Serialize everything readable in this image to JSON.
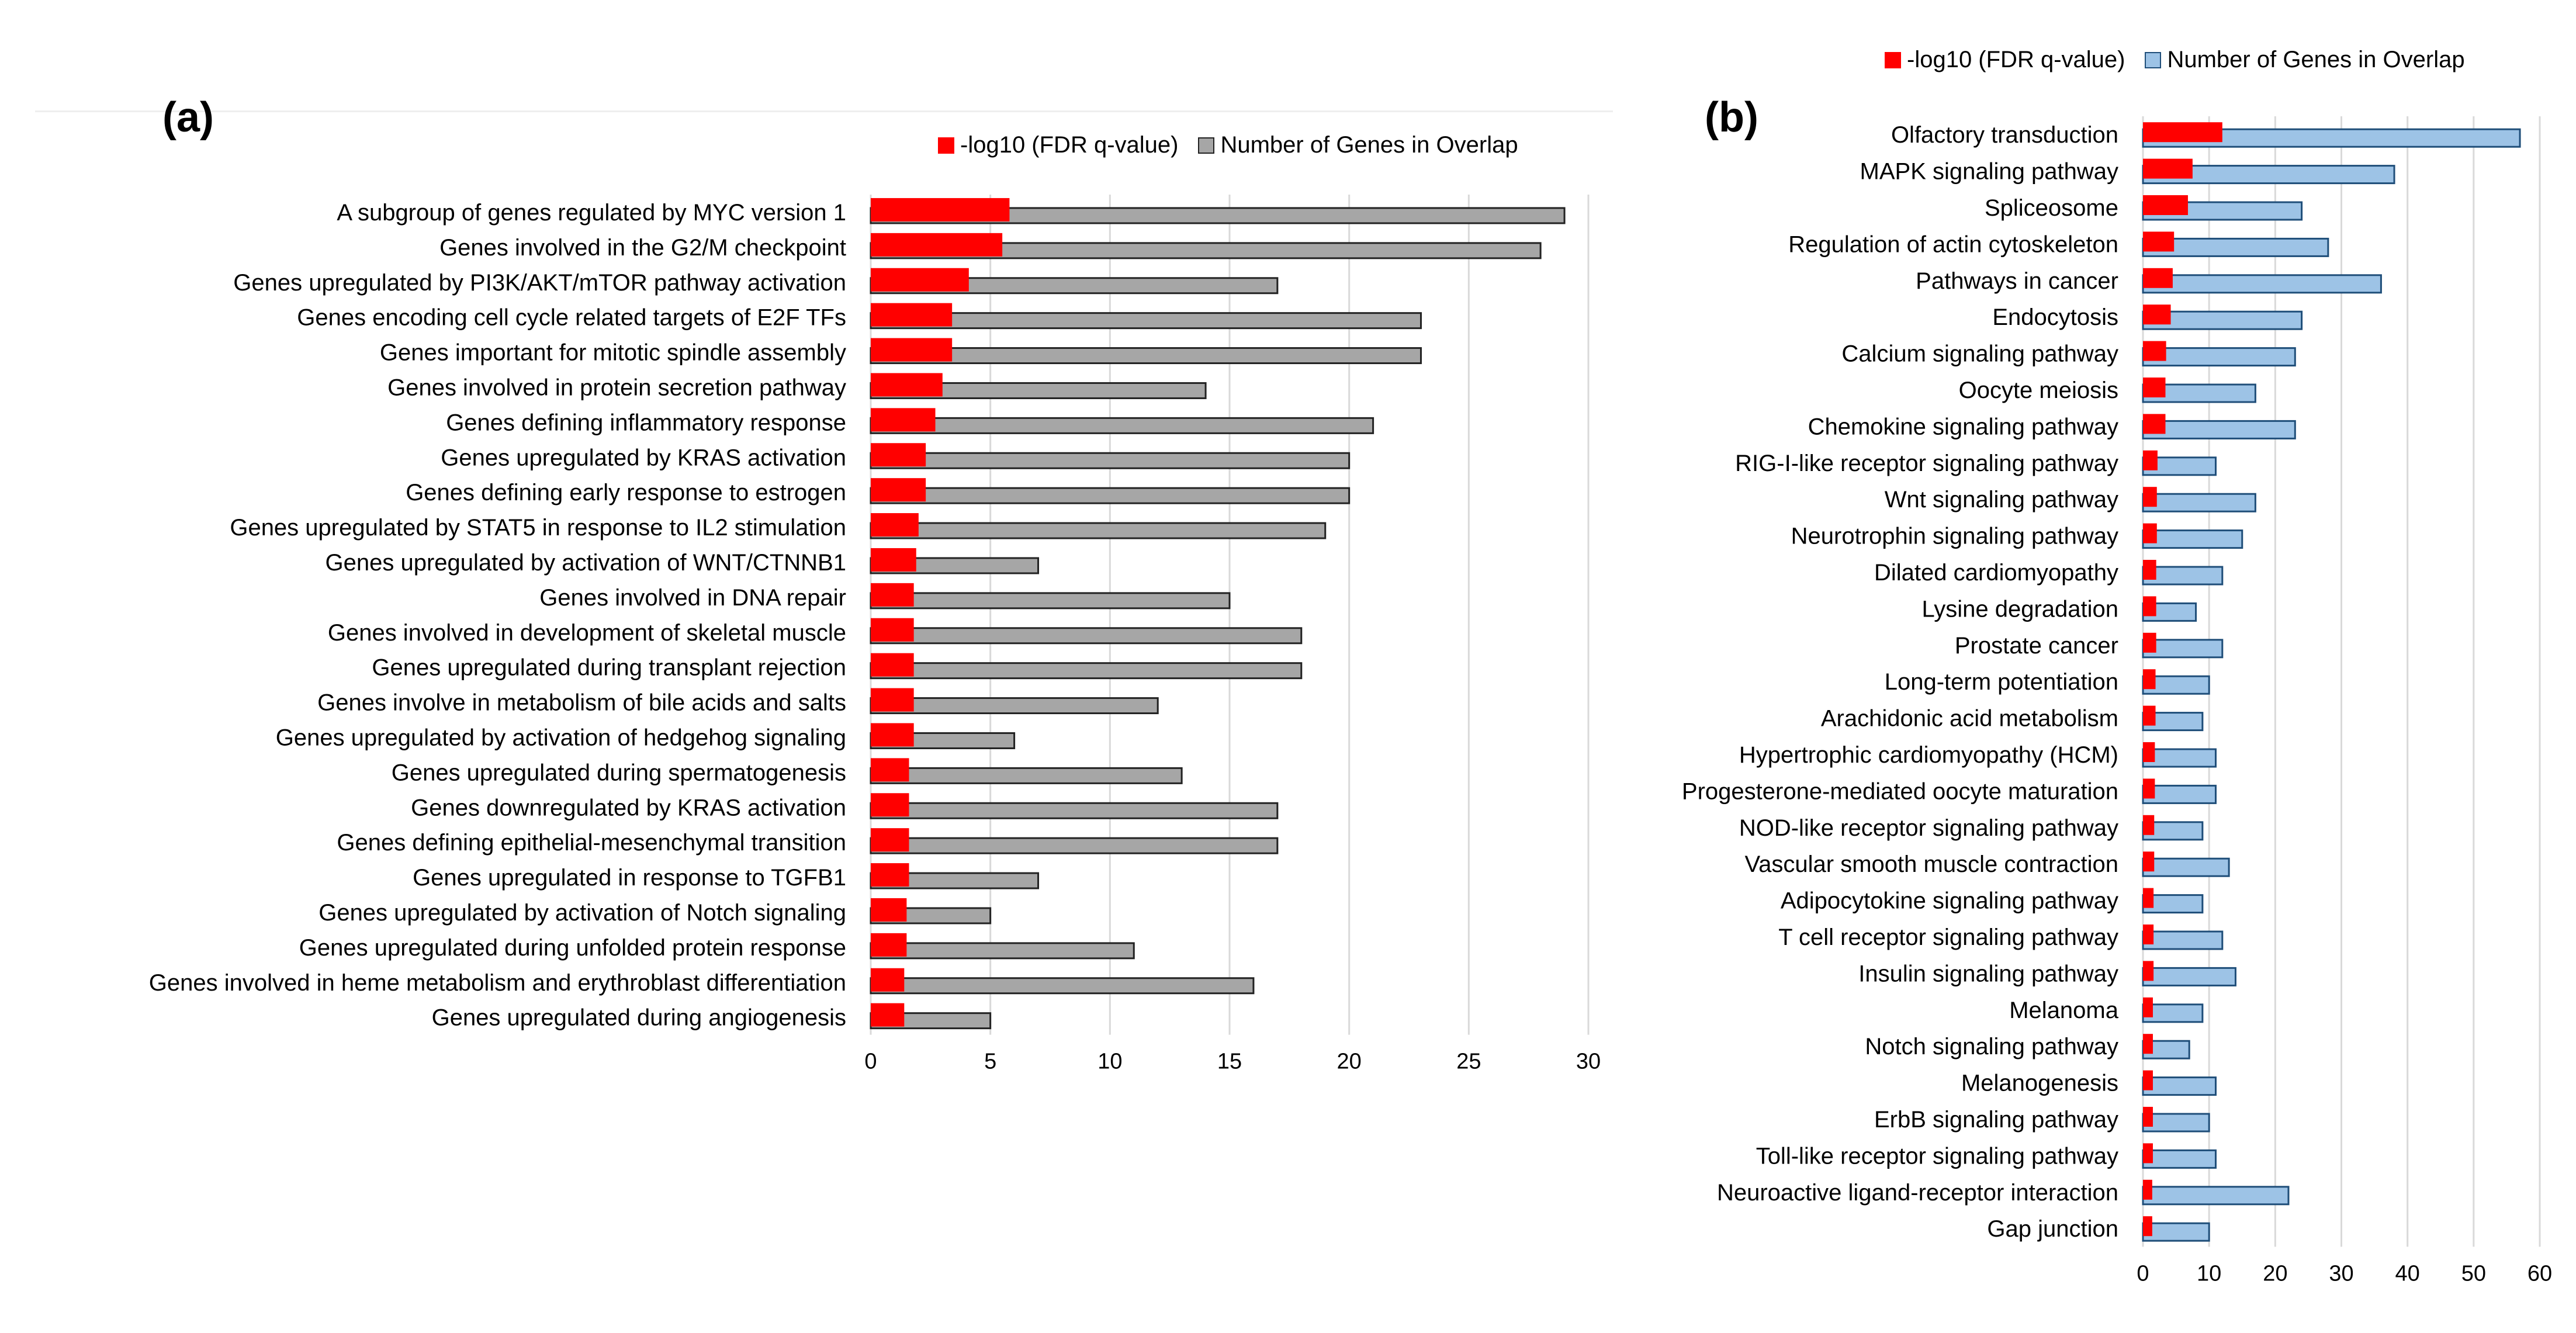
{
  "panels": {
    "a": {
      "label": "(a)"
    },
    "b": {
      "label": "(b)"
    }
  },
  "chart_data": [
    {
      "type": "bar",
      "orientation": "horizontal",
      "panel": "a",
      "title": "",
      "xlabel": "",
      "ylabel": "",
      "xlim": [
        0,
        30
      ],
      "xticks": [
        "0",
        "5",
        "10",
        "15",
        "20",
        "25",
        "30"
      ],
      "grid": true,
      "legend_position": "top",
      "categories": [
        "A subgroup of genes regulated by MYC version 1",
        "Genes involved in the G2/M checkpoint",
        "Genes upregulated by PI3K/AKT/mTOR pathway activation",
        "Genes encoding cell cycle related targets of E2F TFs",
        "Genes important for mitotic spindle assembly",
        "Genes involved in protein secretion pathway",
        "Genes defining inflammatory response",
        "Genes upregulated by KRAS activation",
        "Genes defining early response to estrogen",
        "Genes upregulated by STAT5 in response to IL2 stimulation",
        "Genes upregulated by activation of WNT/CTNNB1",
        "Genes involved in DNA repair",
        "Genes involved in development of skeletal muscle",
        "Genes upregulated during transplant rejection",
        "Genes involve in metabolism of bile acids and salts",
        "Genes upregulated by activation of hedgehog signaling",
        "Genes upregulated during spermatogenesis",
        "Genes downregulated by KRAS activation",
        "Genes defining epithelial-mesenchymal transition",
        "Genes upregulated in response to TGFB1",
        "Genes upregulated by activation of Notch signaling",
        "Genes upregulated during unfolded protein response",
        "Genes involved in heme metabolism and erythroblast differentiation",
        "Genes upregulated during angiogenesis"
      ],
      "series": [
        {
          "name": "-log10 (FDR q-value)",
          "color": "#ff0000",
          "values": [
            5.8,
            5.5,
            4.1,
            3.4,
            3.4,
            3.0,
            2.7,
            2.3,
            2.3,
            2.0,
            1.9,
            1.8,
            1.8,
            1.8,
            1.8,
            1.8,
            1.6,
            1.6,
            1.6,
            1.6,
            1.5,
            1.5,
            1.4,
            1.4
          ]
        },
        {
          "name": "Number of Genes in Overlap",
          "color": "#a6a6a6",
          "values": [
            29,
            28,
            17,
            23,
            23,
            14,
            21,
            20,
            20,
            19,
            7,
            15,
            18,
            18,
            12,
            6,
            13,
            17,
            17,
            7,
            5,
            11,
            16,
            5
          ]
        }
      ]
    },
    {
      "type": "bar",
      "orientation": "horizontal",
      "panel": "b",
      "title": "",
      "xlabel": "",
      "ylabel": "",
      "xlim": [
        0,
        60
      ],
      "xticks": [
        "0",
        "10",
        "20",
        "30",
        "40",
        "50",
        "60"
      ],
      "grid": true,
      "legend_position": "top",
      "categories": [
        "Olfactory transduction",
        "MAPK signaling pathway",
        "Spliceosome",
        "Regulation of actin cytoskeleton",
        "Pathways in cancer",
        "Endocytosis",
        "Calcium signaling pathway",
        "Oocyte meiosis",
        "Chemokine signaling pathway",
        "RIG-I-like receptor signaling pathway",
        "Wnt signaling pathway",
        "Neurotrophin signaling pathway",
        "Dilated cardiomyopathy",
        "Lysine degradation",
        "Prostate cancer",
        "Long-term potentiation",
        "Arachidonic acid metabolism",
        "Hypertrophic cardiomyopathy (HCM)",
        "Progesterone-mediated oocyte maturation",
        "NOD-like receptor signaling pathway",
        "Vascular smooth muscle contraction",
        "Adipocytokine signaling pathway",
        "T cell receptor signaling pathway",
        "Insulin signaling pathway",
        "Melanoma",
        "Notch signaling pathway",
        "Melanogenesis",
        "ErbB signaling pathway",
        "Toll-like receptor signaling pathway",
        "Neuroactive ligand-receptor interaction",
        "Gap junction"
      ],
      "series": [
        {
          "name": "-log10 (FDR q-value)",
          "color": "#ff0000",
          "values": [
            12,
            7.5,
            6.8,
            4.7,
            4.5,
            4.2,
            3.5,
            3.4,
            3.4,
            2.2,
            2.1,
            2.1,
            2.0,
            2.0,
            2.0,
            1.9,
            1.9,
            1.8,
            1.8,
            1.7,
            1.7,
            1.6,
            1.6,
            1.6,
            1.5,
            1.5,
            1.5,
            1.5,
            1.5,
            1.4,
            1.4
          ]
        },
        {
          "name": "Number of Genes in Overlap",
          "color": "#9dc3e6",
          "values": [
            57,
            38,
            24,
            28,
            36,
            24,
            23,
            17,
            23,
            11,
            17,
            15,
            12,
            8,
            12,
            10,
            9,
            11,
            11,
            9,
            13,
            9,
            12,
            14,
            9,
            7,
            11,
            10,
            11,
            22,
            10
          ]
        }
      ]
    }
  ]
}
